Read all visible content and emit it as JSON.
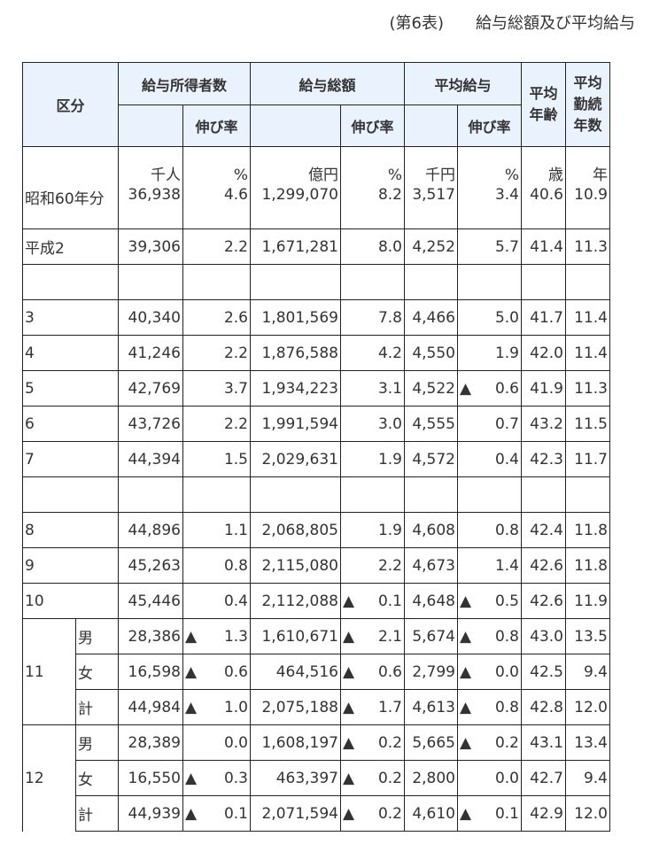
{
  "title": "(第6表)　　給与総額及び平均給与",
  "headers": {
    "kubun": "区分",
    "earners": "給与所得者数",
    "total_pay": "給与総額",
    "avg_pay": "平均給与",
    "avg_age": "平均年齢",
    "avg_tenure": "平均勤続年数",
    "growth": "伸び率"
  },
  "units": [
    "千人",
    "%",
    "億円",
    "%",
    "千円",
    "%",
    "歳",
    "年"
  ],
  "rows": [
    {
      "label": "昭和60年分",
      "cells": [
        "36,938",
        "4.6",
        "1,299,070",
        "8.2",
        "3,517",
        "3.4",
        "40.6",
        "10.9"
      ]
    },
    {
      "label": "平成2",
      "cells": [
        "39,306",
        "2.2",
        "1,671,281",
        "8.0",
        "4,252",
        "5.7",
        "41.4",
        "11.3"
      ]
    },
    {
      "label": "",
      "cells": [
        "",
        "",
        "",
        "",
        "",
        "",
        "",
        ""
      ]
    },
    {
      "label": "3",
      "cells": [
        "40,340",
        "2.6",
        "1,801,569",
        "7.8",
        "4,466",
        "5.0",
        "41.7",
        "11.4"
      ]
    },
    {
      "label": "4",
      "cells": [
        "41,246",
        "2.2",
        "1,876,588",
        "4.2",
        "4,550",
        "1.9",
        "42.0",
        "11.4"
      ]
    },
    {
      "label": "5",
      "cells": [
        "42,769",
        "3.7",
        "1,934,223",
        "3.1",
        "4,522",
        "▲0.6",
        "41.9",
        "11.3"
      ]
    },
    {
      "label": "6",
      "cells": [
        "43,726",
        "2.2",
        "1,991,594",
        "3.0",
        "4,555",
        "0.7",
        "43.2",
        "11.5"
      ]
    },
    {
      "label": "7",
      "cells": [
        "44,394",
        "1.5",
        "2,029,631",
        "1.9",
        "4,572",
        "0.4",
        "42.3",
        "11.7"
      ]
    },
    {
      "label": "",
      "cells": [
        "",
        "",
        "",
        "",
        "",
        "",
        "",
        ""
      ]
    },
    {
      "label": "8",
      "cells": [
        "44,896",
        "1.1",
        "2,068,805",
        "1.9",
        "4,608",
        "0.8",
        "42.4",
        "11.8"
      ]
    },
    {
      "label": "9",
      "cells": [
        "45,263",
        "0.8",
        "2,115,080",
        "2.2",
        "4,673",
        "1.4",
        "42.6",
        "11.8"
      ]
    },
    {
      "label": "10",
      "cells": [
        "45,446",
        "0.4",
        "2,112,088",
        "▲0.1",
        "4,648",
        "▲0.5",
        "42.6",
        "11.9"
      ]
    }
  ],
  "groups": [
    {
      "label": "11",
      "rows": [
        {
          "sub": "男",
          "cells": [
            "28,386",
            "▲1.3",
            "1,610,671",
            "▲2.1",
            "5,674",
            "▲0.8",
            "43.0",
            "13.5"
          ]
        },
        {
          "sub": "女",
          "cells": [
            "16,598",
            "▲0.6",
            "464,516",
            "▲0.6",
            "2,799",
            "▲0.0",
            "42.5",
            "9.4"
          ]
        },
        {
          "sub": "計",
          "cells": [
            "44,984",
            "▲1.0",
            "2,075,188",
            "▲1.7",
            "4,613",
            "▲0.8",
            "42.8",
            "12.0"
          ]
        }
      ]
    },
    {
      "label": "12",
      "rows": [
        {
          "sub": "男",
          "cells": [
            "28,389",
            "0.0",
            "1,608,197",
            "▲0.2",
            "5,665",
            "▲0.2",
            "43.1",
            "13.4"
          ]
        },
        {
          "sub": "女",
          "cells": [
            "16,550",
            "▲0.3",
            "463,397",
            "▲0.2",
            "2,800",
            "0.0",
            "42.7",
            "9.4"
          ]
        },
        {
          "sub": "計",
          "cells": [
            "44,939",
            "▲0.1",
            "2,071,594",
            "▲0.2",
            "4,610",
            "▲0.1",
            "42.9",
            "12.0"
          ]
        }
      ]
    }
  ]
}
